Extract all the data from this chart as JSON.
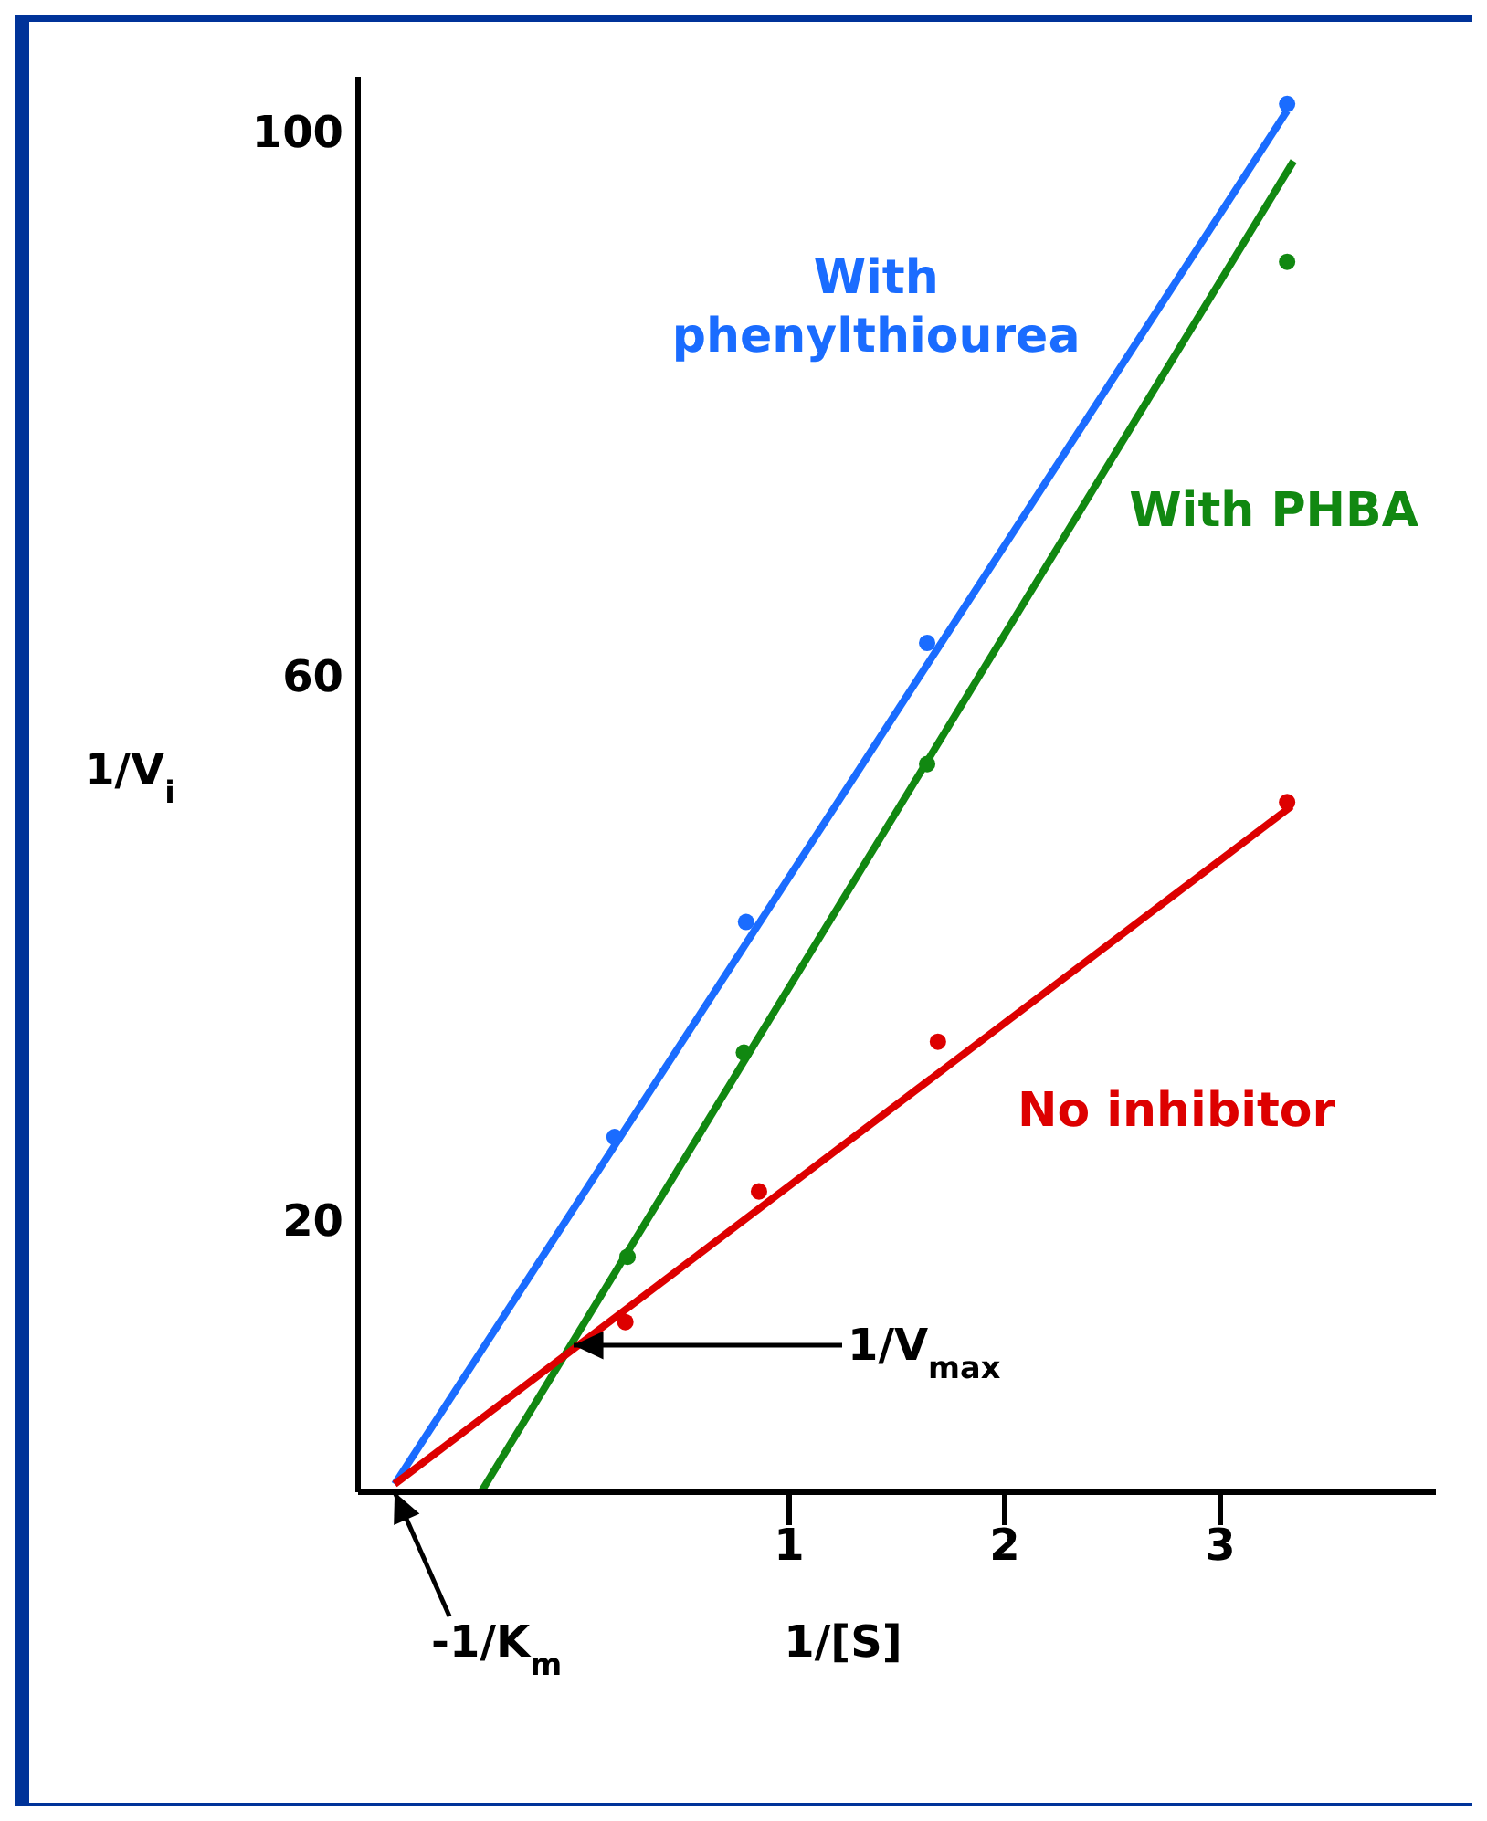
{
  "chart_data": {
    "type": "line",
    "xlabel": "1/[S]",
    "ylabel": "1/V$_{i}$",
    "xlim": [
      -1,
      4
    ],
    "xticks": [
      1,
      2,
      3
    ],
    "ylim": [
      0,
      104
    ],
    "yticks": [
      20,
      60,
      100
    ],
    "grid": false,
    "legend": false,
    "series": [
      {
        "name": "With phenylthiourea",
        "color": "#1a6cff",
        "marker": "none",
        "x": [
          -0.83,
          3.31
        ],
        "values": [
          0.6,
          101.5
        ]
      },
      {
        "type": "scatter",
        "color": "#1a6cff",
        "marker": "circle",
        "x": [
          0.19,
          0.8,
          1.64,
          3.31
        ],
        "values": [
          26.1,
          41.9,
          62.4,
          102
        ]
      },
      {
        "name": "With PHBA",
        "color": "#118811",
        "marker": "none",
        "x": [
          -0.43,
          3.34
        ],
        "values": [
          0,
          97.8
        ]
      },
      {
        "type": "scatter",
        "color": "#118811",
        "marker": "circle",
        "x": [
          0.25,
          0.79,
          1.64,
          3.31
        ],
        "values": [
          17.3,
          32.3,
          53.5,
          90.4
        ]
      },
      {
        "name": "No inhibitor",
        "color": "#dd0000",
        "marker": "none",
        "x": [
          -0.83,
          3.33
        ],
        "values": [
          0.6,
          50.4
        ]
      },
      {
        "type": "scatter",
        "color": "#dd0000",
        "marker": "circle",
        "x": [
          0.24,
          0.86,
          1.69,
          3.31
        ],
        "values": [
          12.5,
          22.1,
          33.1,
          50.7
        ]
      }
    ],
    "annotations": [
      {
        "text": "1/V$_{max}$",
        "x": 0,
        "y": 10.8
      },
      {
        "text": "-1/K$_{m}$",
        "x": -0.83,
        "y": 0
      }
    ]
  }
}
